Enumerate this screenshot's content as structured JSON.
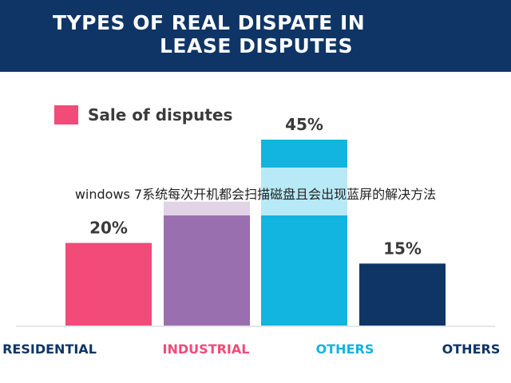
{
  "header": {
    "title_line1": "TYPES OF REAL DISPATE IN",
    "title_line2": "LEASE DISPUTES",
    "background": "#0f3566"
  },
  "legend": {
    "label": "Sale of disputes",
    "color": "#f24a79"
  },
  "watermark": {
    "text": "windows 7系统每次开机都会扫描磁盘且会出现蓝屏的解决方法"
  },
  "chart_data": {
    "type": "bar",
    "title": "TYPES OF REAL DISPATE IN LEASE DISPUTES",
    "categories": [
      "RESIDENTIAL",
      "INDUSTRIAL",
      "OTHERS",
      "OTHERS"
    ],
    "values": [
      20,
      30,
      45,
      15
    ],
    "data_labels": [
      "20%",
      "",
      "45%",
      "15%"
    ],
    "bar_colors": [
      "#f24a79",
      "#9a6fb0",
      "#12b4e0",
      "#0f3566"
    ],
    "category_label_colors": [
      "#0f3566",
      "#f24a79",
      "#12b4e0",
      "#0f3566"
    ],
    "ylim": [
      0,
      45
    ],
    "series": [
      {
        "name": "Sale of disputes",
        "values": [
          20,
          30,
          45,
          15
        ]
      }
    ],
    "legend_position": "top-left",
    "grid": false
  }
}
